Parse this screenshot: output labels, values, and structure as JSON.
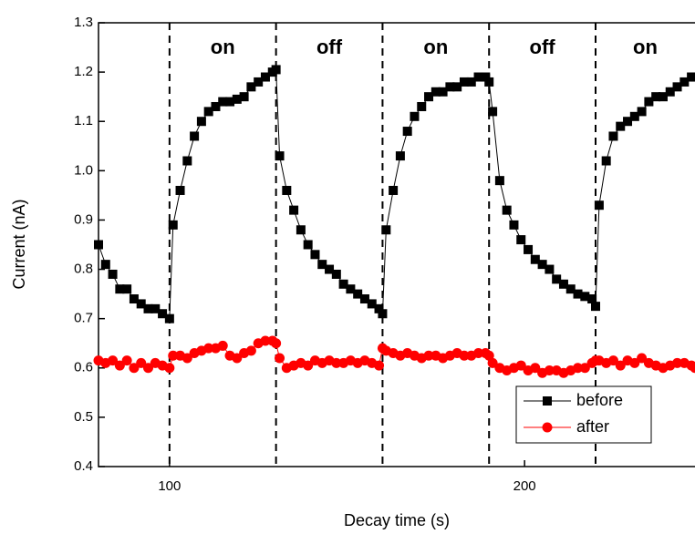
{
  "chart_data": {
    "type": "line",
    "x_label": "Decay time (s)",
    "y_label": "Current (nA)",
    "xlim": [
      80,
      248
    ],
    "ylim": [
      0.4,
      1.3
    ],
    "xticks": [
      100,
      200
    ],
    "yticks": [
      0.4,
      0.5,
      0.6,
      0.7,
      0.8,
      0.9,
      {
        "value": 1,
        "label": "1.0"
      },
      1.1,
      1.2,
      1.3
    ],
    "vlines": [
      100,
      130,
      160,
      190,
      220
    ],
    "annotations": [
      "on",
      "off",
      "on",
      "off",
      "on"
    ],
    "legend_position": "lower right",
    "x": [
      80,
      82,
      84,
      86,
      88,
      90,
      92,
      94,
      96,
      98,
      100,
      101,
      103,
      105,
      107,
      109,
      111,
      113,
      115,
      117,
      119,
      121,
      123,
      125,
      127,
      129,
      130,
      131,
      133,
      135,
      137,
      139,
      141,
      143,
      145,
      147,
      149,
      151,
      153,
      155,
      157,
      159,
      160,
      161,
      163,
      165,
      167,
      169,
      171,
      173,
      175,
      177,
      179,
      181,
      183,
      185,
      187,
      189,
      190,
      191,
      193,
      195,
      197,
      199,
      201,
      203,
      205,
      207,
      209,
      211,
      213,
      215,
      217,
      219,
      220,
      221,
      223,
      225,
      227,
      229,
      231,
      233,
      235,
      237,
      239,
      241,
      243,
      245,
      247,
      248
    ],
    "series": [
      {
        "name": "before",
        "color": "#000000",
        "marker": "square",
        "values": [
          0.85,
          0.81,
          0.79,
          0.76,
          0.76,
          0.74,
          0.73,
          0.72,
          0.72,
          0.71,
          0.7,
          0.89,
          0.96,
          1.02,
          1.07,
          1.1,
          1.12,
          1.13,
          1.14,
          1.14,
          1.145,
          1.15,
          1.17,
          1.18,
          1.19,
          1.2,
          1.205,
          1.03,
          0.96,
          0.92,
          0.88,
          0.85,
          0.83,
          0.81,
          0.8,
          0.79,
          0.77,
          0.76,
          0.75,
          0.74,
          0.73,
          0.72,
          0.71,
          0.88,
          0.96,
          1.03,
          1.08,
          1.11,
          1.13,
          1.15,
          1.16,
          1.16,
          1.17,
          1.17,
          1.18,
          1.18,
          1.19,
          1.19,
          1.18,
          1.12,
          0.98,
          0.92,
          0.89,
          0.86,
          0.84,
          0.82,
          0.81,
          0.8,
          0.78,
          0.77,
          0.76,
          0.75,
          0.745,
          0.74,
          0.725,
          0.93,
          1.02,
          1.07,
          1.09,
          1.1,
          1.11,
          1.12,
          1.14,
          1.15,
          1.15,
          1.16,
          1.17,
          1.18,
          1.19,
          1.19
        ]
      },
      {
        "name": "after",
        "color": "#ff0000",
        "marker": "circle",
        "values": [
          0.615,
          0.61,
          0.615,
          0.605,
          0.615,
          0.6,
          0.61,
          0.6,
          0.61,
          0.605,
          0.6,
          0.625,
          0.625,
          0.62,
          0.63,
          0.635,
          0.64,
          0.64,
          0.645,
          0.625,
          0.62,
          0.63,
          0.635,
          0.65,
          0.655,
          0.655,
          0.65,
          0.62,
          0.6,
          0.605,
          0.61,
          0.605,
          0.615,
          0.61,
          0.615,
          0.61,
          0.61,
          0.615,
          0.61,
          0.615,
          0.61,
          0.605,
          0.64,
          0.635,
          0.63,
          0.625,
          0.63,
          0.625,
          0.62,
          0.625,
          0.625,
          0.62,
          0.625,
          0.63,
          0.625,
          0.625,
          0.63,
          0.63,
          0.625,
          0.61,
          0.6,
          0.595,
          0.6,
          0.605,
          0.595,
          0.6,
          0.59,
          0.595,
          0.595,
          0.59,
          0.595,
          0.6,
          0.6,
          0.61,
          0.615,
          0.615,
          0.61,
          0.615,
          0.605,
          0.615,
          0.61,
          0.62,
          0.61,
          0.605,
          0.6,
          0.605,
          0.61,
          0.61,
          0.605,
          0.6
        ]
      }
    ]
  }
}
